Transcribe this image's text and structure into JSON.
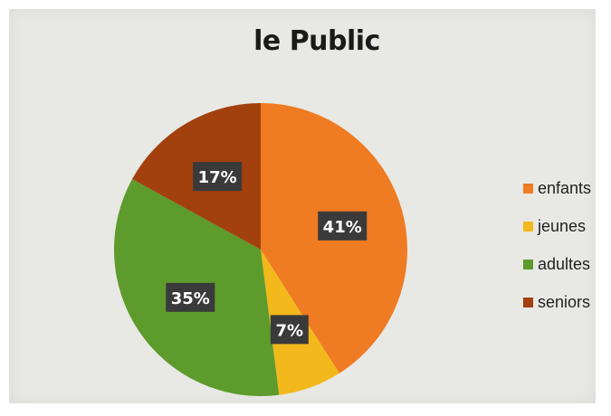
{
  "chart_data": {
    "type": "pie",
    "title": "le Public",
    "categories": [
      "enfants",
      "jeunes",
      "adultes",
      "seniors"
    ],
    "values": [
      41,
      7,
      35,
      17
    ],
    "data_labels": [
      "41%",
      "7%",
      "35%",
      "17%"
    ],
    "colors": [
      "#ef7b22",
      "#f2b81c",
      "#5d9b2c",
      "#a2400e"
    ],
    "label_box_color": "#3a3a3a",
    "legend_placement": "right",
    "start_angle_deg": 0,
    "direction": "clockwise"
  }
}
